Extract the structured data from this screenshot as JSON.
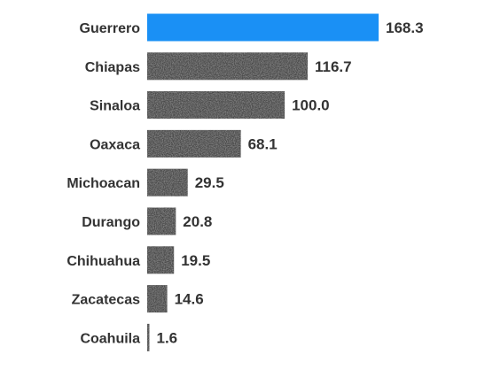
{
  "chart_data": {
    "type": "bar",
    "orientation": "horizontal",
    "categories": [
      "Guerrero",
      "Chiapas",
      "Sinaloa",
      "Oaxaca",
      "Michoacan",
      "Durango",
      "Chihuahua",
      "Zacatecas",
      "Coahuila"
    ],
    "values": [
      168.3,
      116.7,
      100.0,
      68.1,
      29.5,
      20.8,
      19.5,
      14.6,
      1.6
    ],
    "value_labels": [
      "168.3",
      "116.7",
      "100.0",
      "68.1",
      "29.5",
      "20.8",
      "19.5",
      "14.6",
      "1.6"
    ],
    "title": "",
    "xlabel": "",
    "ylabel": "",
    "xlim": [
      0,
      168.3
    ],
    "grid": false,
    "legend": "none",
    "highlight_index": 0,
    "colors": {
      "highlight": "#1a90f5",
      "default": "#4a4a4a",
      "texture_light": "#7a7a7a",
      "texture_dark": "#2a2a2a",
      "text": "#333333"
    }
  }
}
